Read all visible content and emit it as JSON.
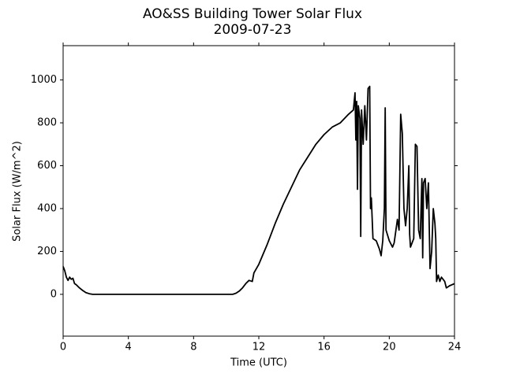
{
  "chart_data": {
    "type": "line",
    "title": "AO&SS Building Tower Solar Flux",
    "subtitle": "2009-07-23",
    "x_label": "Time (UTC)",
    "y_label": "Solar Flux (W/m^2)",
    "xlim": [
      0,
      24
    ],
    "ylim": [
      -195,
      1160
    ],
    "xticks": [
      0,
      4,
      8,
      12,
      16,
      20,
      24
    ],
    "yticks": [
      0,
      200,
      400,
      600,
      800,
      1000
    ],
    "grid": false,
    "x": [
      0,
      0.1,
      0.2,
      0.3,
      0.4,
      0.5,
      0.6,
      0.7,
      0.8,
      1.0,
      1.2,
      1.4,
      1.6,
      1.8,
      2.0,
      10.4,
      10.6,
      10.8,
      11.0,
      11.2,
      11.4,
      11.6,
      11.7,
      12.0,
      12.5,
      13,
      13.5,
      14,
      14.5,
      15,
      15.5,
      16,
      16.5,
      17,
      17.5,
      17.8,
      17.9,
      17.95,
      18.0,
      18.05,
      18.1,
      18.2,
      18.25,
      18.3,
      18.4,
      18.5,
      18.6,
      18.7,
      18.8,
      18.85,
      18.9,
      19.0,
      19.2,
      19.4,
      19.5,
      19.6,
      19.7,
      19.75,
      19.8,
      20.0,
      20.2,
      20.3,
      20.5,
      20.6,
      20.7,
      20.8,
      20.9,
      21.0,
      21.1,
      21.2,
      21.25,
      21.3,
      21.5,
      21.6,
      21.7,
      21.8,
      21.9,
      22.0,
      22.05,
      22.1,
      22.2,
      22.3,
      22.4,
      22.5,
      22.6,
      22.7,
      22.8,
      22.85,
      22.9,
      23.0,
      23.1,
      23.2,
      23.4,
      23.5,
      23.7,
      24
    ],
    "series": [
      {
        "color": "#000000",
        "values": [
          130,
          110,
          80,
          65,
          80,
          70,
          75,
          50,
          45,
          30,
          18,
          8,
          3,
          0,
          0,
          0,
          5,
          15,
          30,
          50,
          65,
          60,
          100,
          140,
          230,
          330,
          420,
          500,
          580,
          640,
          700,
          745,
          780,
          800,
          840,
          860,
          940,
          720,
          900,
          490,
          880,
          820,
          270,
          860,
          700,
          880,
          720,
          960,
          970,
          400,
          450,
          260,
          250,
          210,
          180,
          250,
          400,
          870,
          300,
          250,
          220,
          240,
          350,
          300,
          840,
          750,
          400,
          320,
          400,
          600,
          280,
          220,
          260,
          700,
          690,
          300,
          260,
          540,
          170,
          520,
          540,
          400,
          520,
          120,
          200,
          400,
          330,
          260,
          60,
          90,
          60,
          80,
          60,
          30,
          40,
          50
        ]
      }
    ]
  }
}
